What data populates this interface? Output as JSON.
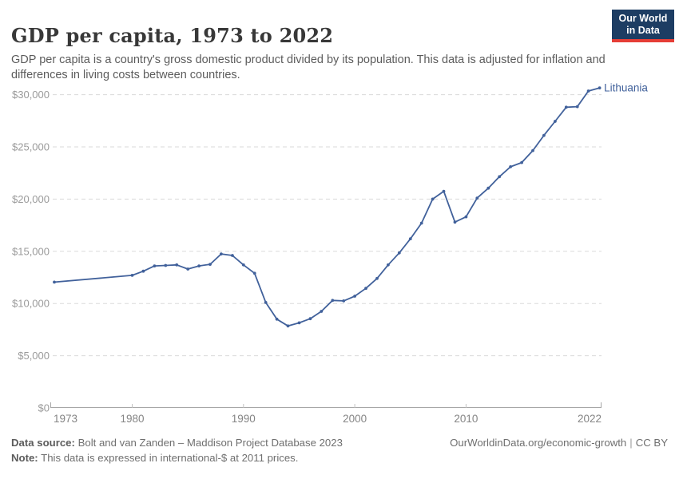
{
  "header": {
    "title": "GDP per capita, 1973 to 2022",
    "subtitle": "GDP per capita is a country's gross domestic product divided by its population. This data is adjusted for inflation and differences in living costs between countries.",
    "logo": {
      "line1": "Our World",
      "line2": "in Data",
      "bg_color": "#1d3d63",
      "stripe_color": "#e63e36"
    }
  },
  "chart_data": {
    "type": "line",
    "title": "GDP per capita, 1973 to 2022",
    "xlabel": "",
    "ylabel": "",
    "xlim": [
      1973,
      2022
    ],
    "ylim": [
      0,
      31500
    ],
    "grid": "dashed horizontal",
    "legend_position": "end-of-line label",
    "line_color": "#41619b",
    "x_ticks": [
      {
        "value": 1973,
        "label": "1973"
      },
      {
        "value": 1980,
        "label": "1980"
      },
      {
        "value": 1990,
        "label": "1990"
      },
      {
        "value": 2000,
        "label": "2000"
      },
      {
        "value": 2010,
        "label": "2010"
      },
      {
        "value": 2022,
        "label": "2022"
      }
    ],
    "y_ticks": [
      {
        "value": 0,
        "label": "$0"
      },
      {
        "value": 5000,
        "label": "$5,000"
      },
      {
        "value": 10000,
        "label": "$10,000"
      },
      {
        "value": 15000,
        "label": "$15,000"
      },
      {
        "value": 20000,
        "label": "$20,000"
      },
      {
        "value": 25000,
        "label": "$25,000"
      },
      {
        "value": 30000,
        "label": "$30,000"
      }
    ],
    "series": [
      {
        "name": "Lithuania",
        "color": "#41619b",
        "points": [
          [
            1973,
            12050
          ],
          [
            1980,
            12700
          ],
          [
            1981,
            13100
          ],
          [
            1982,
            13600
          ],
          [
            1983,
            13650
          ],
          [
            1984,
            13700
          ],
          [
            1985,
            13300
          ],
          [
            1986,
            13600
          ],
          [
            1987,
            13750
          ],
          [
            1988,
            14750
          ],
          [
            1989,
            14600
          ],
          [
            1990,
            13700
          ],
          [
            1991,
            12900
          ],
          [
            1992,
            10100
          ],
          [
            1993,
            8500
          ],
          [
            1994,
            7850
          ],
          [
            1995,
            8150
          ],
          [
            1996,
            8550
          ],
          [
            1997,
            9250
          ],
          [
            1998,
            10300
          ],
          [
            1999,
            10250
          ],
          [
            2000,
            10700
          ],
          [
            2001,
            11450
          ],
          [
            2002,
            12400
          ],
          [
            2003,
            13700
          ],
          [
            2004,
            14850
          ],
          [
            2005,
            16200
          ],
          [
            2006,
            17700
          ],
          [
            2007,
            20000
          ],
          [
            2008,
            20750
          ],
          [
            2009,
            17800
          ],
          [
            2010,
            18300
          ],
          [
            2011,
            20100
          ],
          [
            2012,
            21050
          ],
          [
            2013,
            22150
          ],
          [
            2014,
            23100
          ],
          [
            2015,
            23500
          ],
          [
            2016,
            24650
          ],
          [
            2017,
            26100
          ],
          [
            2018,
            27450
          ],
          [
            2019,
            28800
          ],
          [
            2020,
            28850
          ],
          [
            2021,
            30350
          ],
          [
            2022,
            30650
          ]
        ]
      }
    ]
  },
  "footer": {
    "datasource_label": "Data source:",
    "datasource_text": "Bolt and van Zanden – Maddison Project Database 2023",
    "note_label": "Note:",
    "note_text": "This data is expressed in international-$ at 2011 prices.",
    "link": "OurWorldinData.org/economic-growth",
    "separator": "|",
    "license": "CC BY"
  }
}
